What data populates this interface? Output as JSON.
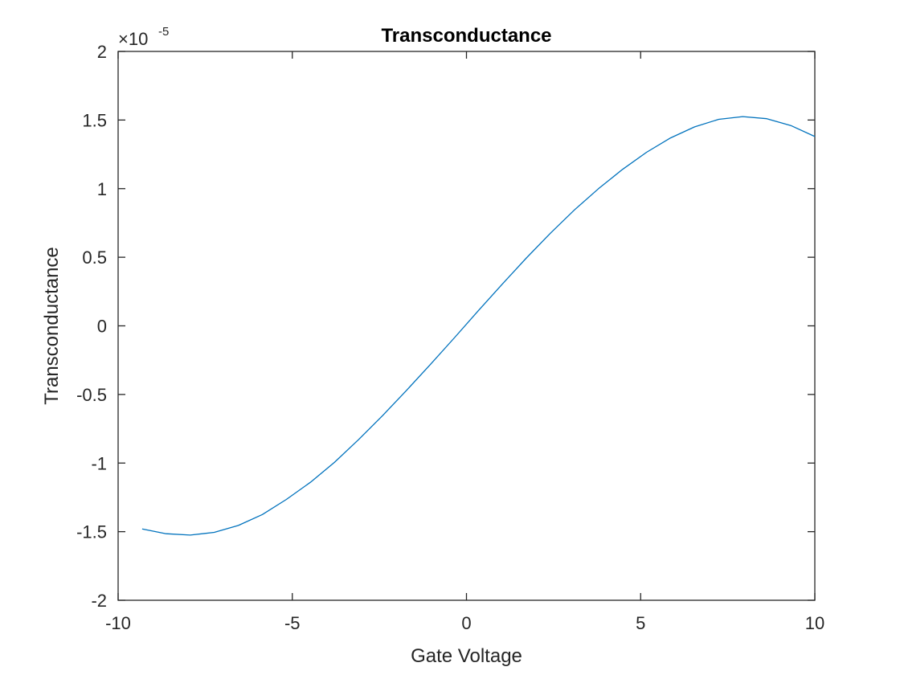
{
  "figure": {
    "background": "#ffffff"
  },
  "chart_data": {
    "type": "line",
    "title": "Transconductance",
    "xlabel": "Gate Voltage",
    "ylabel": "Transconductance",
    "xlim": [
      -10,
      10
    ],
    "ylim": [
      -2e-05,
      2e-05
    ],
    "y_exponent_label": "×10",
    "y_exponent_power": "-5",
    "xticks": [
      -10,
      -5,
      0,
      5,
      10
    ],
    "xtick_labels": [
      "-10",
      "-5",
      "0",
      "5",
      "10"
    ],
    "yticks": [
      -2e-05,
      -1.5e-05,
      -1e-05,
      -5e-06,
      0,
      5e-06,
      1e-05,
      1.5e-05,
      2e-05
    ],
    "ytick_labels": [
      "-2",
      "-1.5",
      "-1",
      "-0.5",
      "0",
      "0.5",
      "1",
      "1.5",
      "2"
    ],
    "grid": false,
    "box": true,
    "colors": {
      "line": "#0072BD",
      "axes": "#262626",
      "title": "#000000",
      "background": "#ffffff"
    },
    "series": [
      {
        "x": [
          -9.31,
          -8.62,
          -7.93,
          -7.24,
          -6.55,
          -5.86,
          -5.17,
          -4.48,
          -3.79,
          -3.1,
          -2.41,
          -1.72,
          -1.03,
          -0.34,
          0.34,
          1.03,
          1.72,
          2.41,
          3.1,
          3.79,
          4.48,
          5.17,
          5.86,
          6.55,
          7.24,
          7.93,
          8.62,
          9.31,
          10.0
        ],
        "y": [
          -1.48e-05,
          -1.515e-05,
          -1.525e-05,
          -1.505e-05,
          -1.455e-05,
          -1.375e-05,
          -1.265e-05,
          -1.14e-05,
          -9.95e-06,
          -8.3e-06,
          -6.55e-06,
          -4.7e-06,
          -2.8e-06,
          -8.5e-07,
          1.1e-06,
          3.05e-06,
          4.95e-06,
          6.75e-06,
          8.45e-06,
          1e-05,
          1.14e-05,
          1.265e-05,
          1.37e-05,
          1.45e-05,
          1.505e-05,
          1.525e-05,
          1.51e-05,
          1.46e-05,
          1.38e-05
        ]
      }
    ]
  }
}
